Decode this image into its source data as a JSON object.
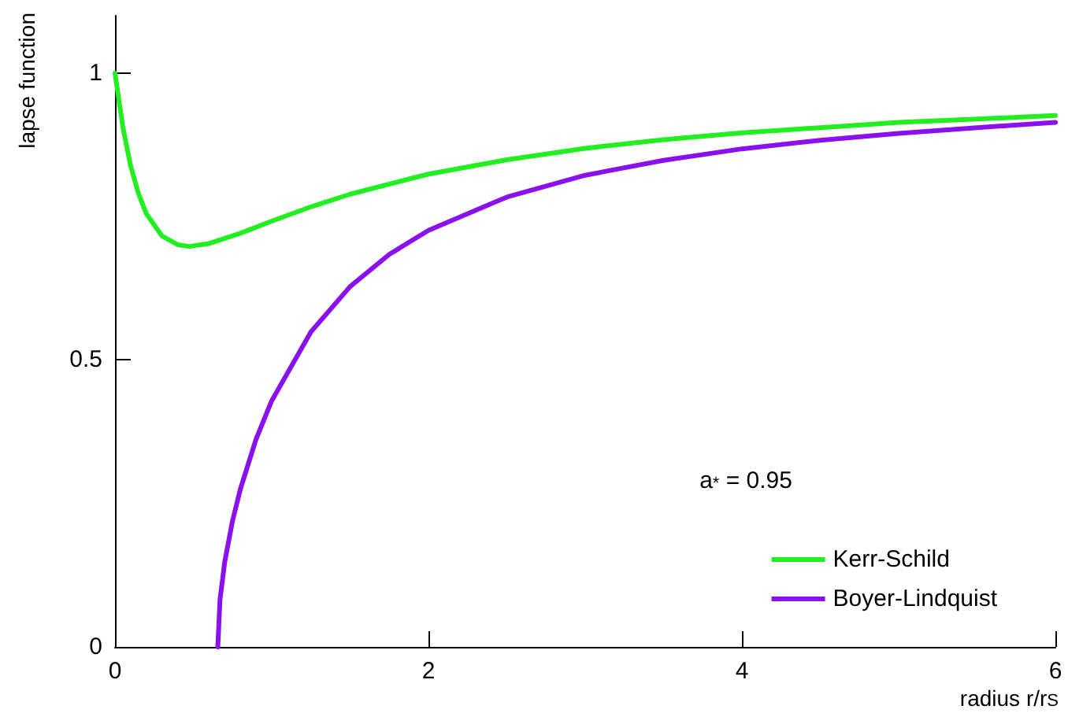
{
  "chart_data": {
    "type": "line",
    "xlabel": "radius r/r$_{S}$",
    "ylabel": "lapse function",
    "annotations": [
      "a$_{*}$ = 0.95"
    ],
    "xlim": [
      0,
      6
    ],
    "xticks": [
      0,
      2,
      4,
      6
    ],
    "ylim": [
      0,
      1.1
    ],
    "yticks": [
      0,
      0.5,
      1
    ],
    "grid": false,
    "legend": "bottom right",
    "marker": "none",
    "line_style": "solid",
    "series": [
      {
        "name": "Kerr-Schild",
        "color": "#22ee22",
        "x": [
          0,
          0.05,
          0.1,
          0.15,
          0.2,
          0.3,
          0.4,
          0.475,
          0.6,
          0.8,
          1,
          1.25,
          1.5,
          2,
          2.5,
          3,
          3.5,
          4,
          4.5,
          5,
          5.5,
          6
        ],
        "values": [
          1,
          0.906,
          0.838,
          0.79,
          0.755,
          0.716,
          0.701,
          0.698,
          0.703,
          0.721,
          0.742,
          0.767,
          0.789,
          0.824,
          0.849,
          0.869,
          0.884,
          0.896,
          0.905,
          0.914,
          0.92,
          0.926
        ]
      },
      {
        "name": "Boyer-Lindquist",
        "color": "#8b10ee",
        "x": [
          0.656,
          0.67,
          0.7,
          0.75,
          0.8,
          0.9,
          1,
          1.25,
          1.5,
          1.75,
          2,
          2.5,
          3,
          3.5,
          4,
          4.5,
          5,
          5.5,
          6
        ],
        "values": [
          0,
          0.082,
          0.148,
          0.22,
          0.275,
          0.362,
          0.429,
          0.549,
          0.628,
          0.684,
          0.726,
          0.784,
          0.822,
          0.848,
          0.868,
          0.883,
          0.895,
          0.905,
          0.914
        ]
      }
    ]
  }
}
